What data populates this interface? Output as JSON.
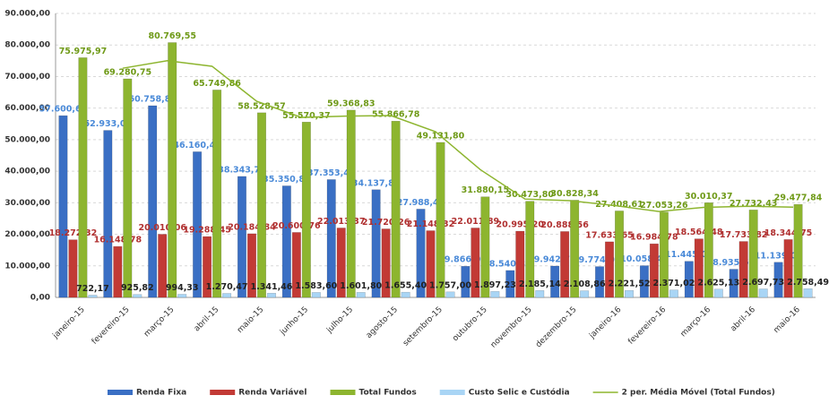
{
  "chart_data": {
    "type": "bar",
    "categories": [
      "janeiro-15",
      "fevereiro-15",
      "março-15",
      "abril-15",
      "maio-15",
      "junho-15",
      "julho-15",
      "agosto-15",
      "setembro-15",
      "outubro-15",
      "novembro-15",
      "dezembro-15",
      "janeiro-16",
      "fevereiro-16",
      "março-16",
      "abril-16",
      "maio-16"
    ],
    "ylim": [
      0,
      90000
    ],
    "yticks": [
      {
        "value": 0,
        "label": "0,00"
      },
      {
        "value": 10000,
        "label": "10.000,00"
      },
      {
        "value": 20000,
        "label": "20.000,00"
      },
      {
        "value": 30000,
        "label": "30.000,00"
      },
      {
        "value": 40000,
        "label": "40.000,00"
      },
      {
        "value": 50000,
        "label": "50.000,00"
      },
      {
        "value": 60000,
        "label": "60.000,00"
      },
      {
        "value": 70000,
        "label": "70.000,00"
      },
      {
        "value": 80000,
        "label": "80.000,00"
      },
      {
        "value": 90000,
        "label": "90.000,00"
      }
    ],
    "grid": true,
    "legend": "bottom",
    "series": [
      {
        "name": "Renda Fixa",
        "type": "bar",
        "color": "#3a6fc4",
        "label_color": "#4a8ad8",
        "values": [
          57600.65,
          52933.07,
          60758.89,
          46160.41,
          38343.73,
          35350.82,
          37353.46,
          34137.82,
          27988.49,
          9866.0,
          8540.37,
          9942.75,
          9774.03,
          10058.48,
          11445.09,
          8935.6,
          11139.09
        ],
        "value_labels": [
          "57.600,65",
          "52.933,07",
          "60.758,89",
          "46.160,41",
          "38.343,73",
          "35.350,82",
          "37.353,46",
          "34.137,82",
          "27.988,49",
          "9.866,00",
          "8.540,37",
          "9.942,75",
          "9.774,03",
          "10.058,48",
          "11.445,09",
          "8.935,60",
          "11.139,09"
        ]
      },
      {
        "name": "Renda Variável",
        "type": "bar",
        "color": "#c23a35",
        "label_color": "#b03030",
        "values": [
          18272.32,
          16148.78,
          20010.06,
          19288.45,
          20184.84,
          20600.76,
          22013.37,
          21720.26,
          21148.32,
          22011.89,
          20995.2,
          20888.56,
          17633.65,
          16984.78,
          18564.48,
          17733.82,
          18344.75
        ],
        "value_labels": [
          "18.272,32",
          "16.148,78",
          "20.010,06",
          "19.288,45",
          "20.184,84",
          "20.600,76",
          "22.013,37",
          "21.720,26",
          "21.148,32",
          "22.011,89",
          "20.995,20",
          "20.888,56",
          "17.633,65",
          "16.984,78",
          "18.564,48",
          "17.733,82",
          "18.344,75"
        ]
      },
      {
        "name": "Total Fundos",
        "type": "bar",
        "color": "#8db52f",
        "label_color": "#6f9a18",
        "values": [
          75975.97,
          69280.75,
          80769.55,
          65749.86,
          58528.57,
          55570.37,
          59368.83,
          55866.78,
          49131.8,
          31880.15,
          30473.8,
          30828.34,
          27408.61,
          27053.26,
          30010.37,
          27732.43,
          29477.84
        ],
        "value_labels": [
          "75.975,97",
          "69.280,75",
          "80.769,55",
          "65.749,86",
          "58.528,57",
          "55.570,37",
          "59.368,83",
          "55.866,78",
          "49.131,80",
          "31.880,15",
          "30.473,80",
          "30.828,34",
          "27.408,61",
          "27.053,26",
          "30.010,37",
          "27.732,43",
          "29.477,84"
        ]
      },
      {
        "name": "Custo Selic e Custódia",
        "type": "bar",
        "color": "#a9d5f5",
        "label_color": "#222222",
        "values": [
          722.17,
          925.82,
          994.33,
          1270.47,
          1341.46,
          1583.6,
          1601.8,
          1655.4,
          1757.0,
          1897.23,
          2185.14,
          2108.86,
          2221.52,
          2371.02,
          2625.13,
          2697.73,
          2758.49
        ],
        "value_labels": [
          "722,17",
          "925,82",
          "994,33",
          "1.270,47",
          "1.341,46",
          "1.583,60",
          "1.601,80",
          "1.655,40",
          "1.757,00",
          "1.897,23",
          "2.185,14",
          "2.108,86",
          "2.221,52",
          "2.371,02",
          "2.625,13",
          "2.697,73",
          "2.758,49"
        ]
      },
      {
        "name": "2 per. Média Móvel (Total Fundos)",
        "type": "line",
        "color": "#8db52f",
        "values": [
          null,
          72628.36,
          75025.15,
          73259.71,
          62139.22,
          57049.47,
          57469.6,
          57617.81,
          52499.29,
          40505.98,
          31176.98,
          30651.07,
          29118.48,
          27230.94,
          28531.82,
          28871.4,
          28605.14
        ]
      }
    ]
  }
}
